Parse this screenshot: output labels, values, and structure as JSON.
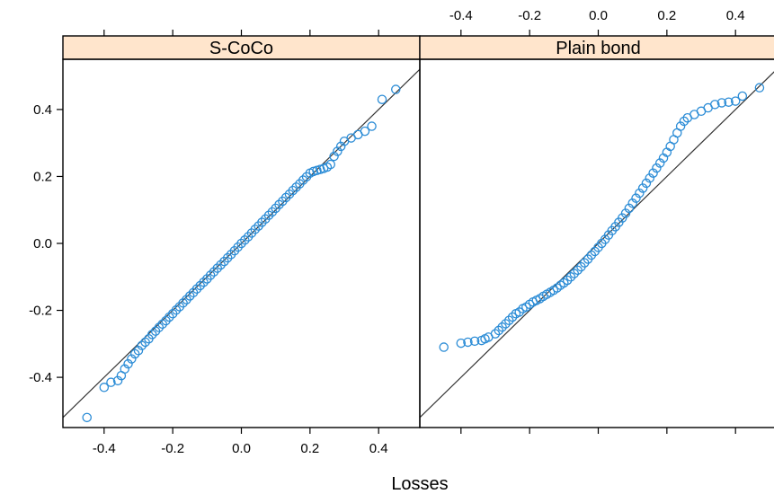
{
  "chart_data": {
    "type": "scatter",
    "subtype": "qq-plot-panels",
    "xlabel": "Losses",
    "ylabel": "",
    "xlim": [
      -0.52,
      0.52
    ],
    "ylim": [
      -0.55,
      0.55
    ],
    "xticks": [
      -0.4,
      -0.2,
      0.0,
      0.2,
      0.4
    ],
    "yticks": [
      -0.4,
      -0.2,
      0.0,
      0.2,
      0.4
    ],
    "tick_labels": [
      "-0.4",
      "-0.2",
      "0.0",
      "0.2",
      "0.4"
    ],
    "reference_line": "y = x",
    "marker_color": "#2b8cd6",
    "strip_color": "#ffe5cc",
    "line_color": "#333333",
    "panels": [
      {
        "name": "S-CoCo",
        "points": [
          [
            -0.45,
            -0.52
          ],
          [
            -0.4,
            -0.43
          ],
          [
            -0.38,
            -0.415
          ],
          [
            -0.36,
            -0.41
          ],
          [
            -0.35,
            -0.395
          ],
          [
            -0.34,
            -0.375
          ],
          [
            -0.33,
            -0.36
          ],
          [
            -0.32,
            -0.345
          ],
          [
            -0.31,
            -0.33
          ],
          [
            -0.3,
            -0.32
          ],
          [
            -0.29,
            -0.305
          ],
          [
            -0.28,
            -0.295
          ],
          [
            -0.27,
            -0.285
          ],
          [
            -0.26,
            -0.272
          ],
          [
            -0.25,
            -0.262
          ],
          [
            -0.24,
            -0.251
          ],
          [
            -0.23,
            -0.241
          ],
          [
            -0.22,
            -0.231
          ],
          [
            -0.21,
            -0.22
          ],
          [
            -0.2,
            -0.21
          ],
          [
            -0.19,
            -0.199
          ],
          [
            -0.18,
            -0.189
          ],
          [
            -0.17,
            -0.178
          ],
          [
            -0.16,
            -0.168
          ],
          [
            -0.15,
            -0.157
          ],
          [
            -0.14,
            -0.147
          ],
          [
            -0.13,
            -0.136
          ],
          [
            -0.12,
            -0.126
          ],
          [
            -0.11,
            -0.116
          ],
          [
            -0.1,
            -0.106
          ],
          [
            -0.09,
            -0.095
          ],
          [
            -0.08,
            -0.085
          ],
          [
            -0.07,
            -0.074
          ],
          [
            -0.06,
            -0.064
          ],
          [
            -0.05,
            -0.054
          ],
          [
            -0.04,
            -0.043
          ],
          [
            -0.03,
            -0.033
          ],
          [
            -0.02,
            -0.022
          ],
          [
            -0.01,
            -0.011
          ],
          [
            0.0,
            0.0
          ],
          [
            0.01,
            0.01
          ],
          [
            0.02,
            0.02
          ],
          [
            0.03,
            0.031
          ],
          [
            0.04,
            0.042
          ],
          [
            0.05,
            0.052
          ],
          [
            0.06,
            0.063
          ],
          [
            0.07,
            0.073
          ],
          [
            0.08,
            0.084
          ],
          [
            0.09,
            0.094
          ],
          [
            0.1,
            0.105
          ],
          [
            0.11,
            0.116
          ],
          [
            0.12,
            0.126
          ],
          [
            0.13,
            0.137
          ],
          [
            0.14,
            0.147
          ],
          [
            0.15,
            0.158
          ],
          [
            0.16,
            0.168
          ],
          [
            0.17,
            0.178
          ],
          [
            0.18,
            0.189
          ],
          [
            0.19,
            0.199
          ],
          [
            0.2,
            0.21
          ],
          [
            0.21,
            0.215
          ],
          [
            0.22,
            0.218
          ],
          [
            0.23,
            0.221
          ],
          [
            0.24,
            0.224
          ],
          [
            0.25,
            0.228
          ],
          [
            0.26,
            0.236
          ],
          [
            0.27,
            0.26
          ],
          [
            0.28,
            0.275
          ],
          [
            0.29,
            0.29
          ],
          [
            0.3,
            0.305
          ],
          [
            0.32,
            0.315
          ],
          [
            0.34,
            0.325
          ],
          [
            0.36,
            0.335
          ],
          [
            0.38,
            0.35
          ],
          [
            0.41,
            0.43
          ],
          [
            0.45,
            0.46
          ]
        ]
      },
      {
        "name": "Plain bond",
        "points": [
          [
            -0.45,
            -0.31
          ],
          [
            -0.4,
            -0.298
          ],
          [
            -0.38,
            -0.295
          ],
          [
            -0.36,
            -0.292
          ],
          [
            -0.34,
            -0.29
          ],
          [
            -0.33,
            -0.285
          ],
          [
            -0.32,
            -0.28
          ],
          [
            -0.3,
            -0.27
          ],
          [
            -0.29,
            -0.26
          ],
          [
            -0.28,
            -0.25
          ],
          [
            -0.27,
            -0.24
          ],
          [
            -0.26,
            -0.23
          ],
          [
            -0.25,
            -0.22
          ],
          [
            -0.24,
            -0.21
          ],
          [
            -0.23,
            -0.205
          ],
          [
            -0.22,
            -0.195
          ],
          [
            -0.21,
            -0.19
          ],
          [
            -0.2,
            -0.182
          ],
          [
            -0.19,
            -0.175
          ],
          [
            -0.18,
            -0.17
          ],
          [
            -0.17,
            -0.165
          ],
          [
            -0.16,
            -0.158
          ],
          [
            -0.15,
            -0.152
          ],
          [
            -0.14,
            -0.146
          ],
          [
            -0.13,
            -0.14
          ],
          [
            -0.12,
            -0.133
          ],
          [
            -0.11,
            -0.125
          ],
          [
            -0.1,
            -0.118
          ],
          [
            -0.09,
            -0.11
          ],
          [
            -0.08,
            -0.1
          ],
          [
            -0.07,
            -0.09
          ],
          [
            -0.06,
            -0.08
          ],
          [
            -0.05,
            -0.07
          ],
          [
            -0.04,
            -0.058
          ],
          [
            -0.03,
            -0.047
          ],
          [
            -0.02,
            -0.035
          ],
          [
            -0.01,
            -0.024
          ],
          [
            0.0,
            -0.012
          ],
          [
            0.01,
            0.0
          ],
          [
            0.02,
            0.012
          ],
          [
            0.03,
            0.025
          ],
          [
            0.04,
            0.038
          ],
          [
            0.05,
            0.05
          ],
          [
            0.06,
            0.063
          ],
          [
            0.07,
            0.076
          ],
          [
            0.08,
            0.09
          ],
          [
            0.09,
            0.105
          ],
          [
            0.1,
            0.12
          ],
          [
            0.11,
            0.135
          ],
          [
            0.12,
            0.15
          ],
          [
            0.13,
            0.165
          ],
          [
            0.14,
            0.18
          ],
          [
            0.15,
            0.195
          ],
          [
            0.16,
            0.21
          ],
          [
            0.17,
            0.225
          ],
          [
            0.18,
            0.24
          ],
          [
            0.19,
            0.255
          ],
          [
            0.2,
            0.272
          ],
          [
            0.21,
            0.29
          ],
          [
            0.22,
            0.31
          ],
          [
            0.23,
            0.33
          ],
          [
            0.24,
            0.35
          ],
          [
            0.25,
            0.365
          ],
          [
            0.26,
            0.375
          ],
          [
            0.28,
            0.385
          ],
          [
            0.3,
            0.395
          ],
          [
            0.32,
            0.405
          ],
          [
            0.34,
            0.415
          ],
          [
            0.36,
            0.42
          ],
          [
            0.38,
            0.422
          ],
          [
            0.4,
            0.425
          ],
          [
            0.42,
            0.44
          ],
          [
            0.47,
            0.465
          ]
        ]
      }
    ]
  }
}
